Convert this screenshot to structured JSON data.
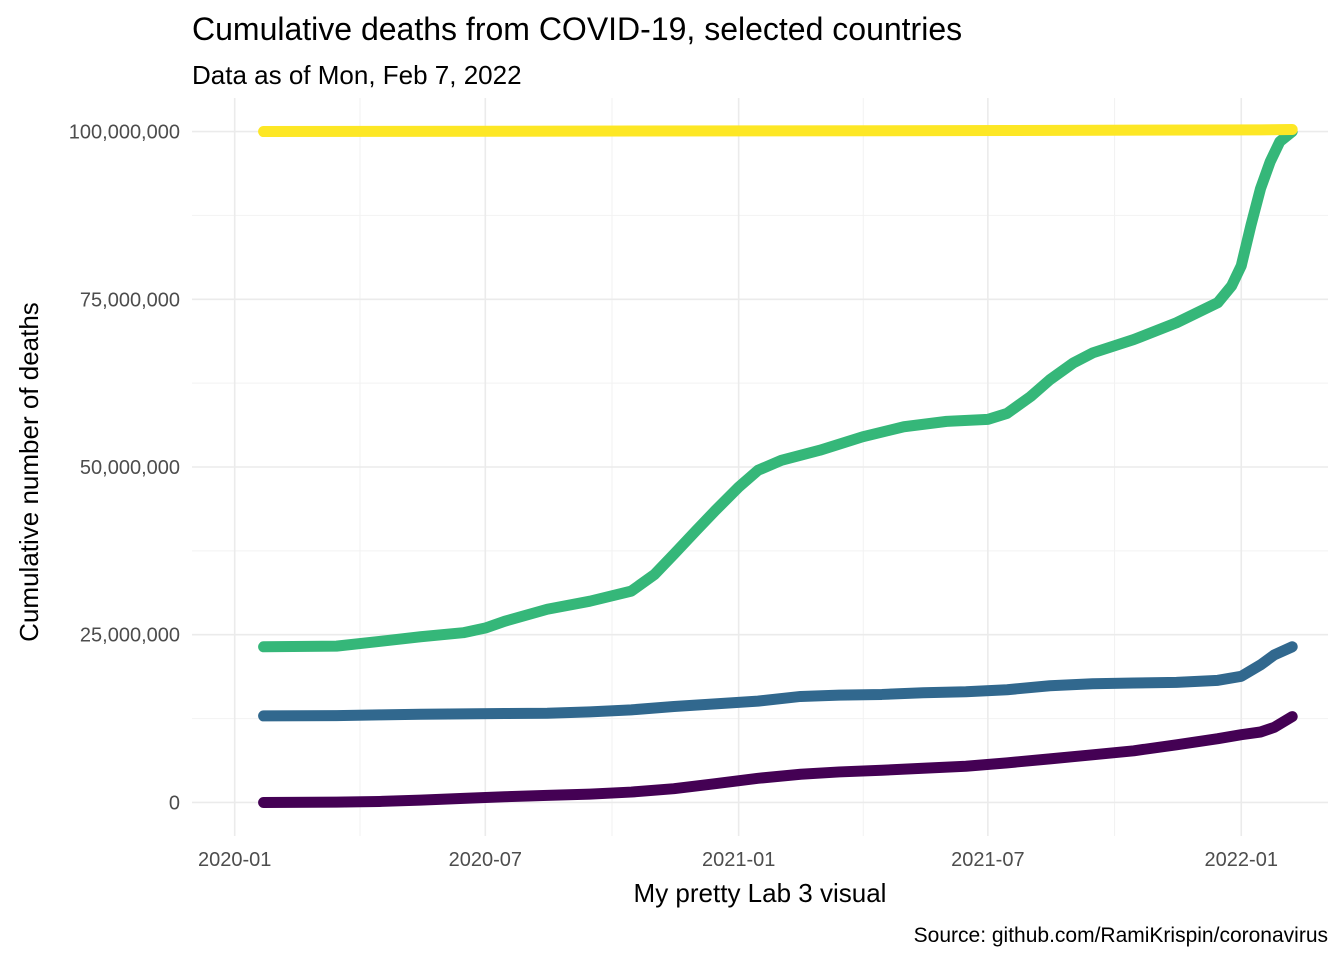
{
  "chart_data": {
    "type": "line",
    "title": "Cumulative deaths from COVID-19, selected countries",
    "subtitle": "Data as of Mon, Feb 7, 2022",
    "xlabel": "My pretty Lab 3 visual",
    "ylabel": "Cumulative number of deaths",
    "caption": "Source: github.com/RamiKrispin/coronavirus",
    "grid": true,
    "legend": "none",
    "x_tick_labels": [
      "2020-01",
      "2020-07",
      "2021-01",
      "2021-07",
      "2022-01"
    ],
    "y_tick_labels": [
      "0",
      "25,000,000",
      "50,000,000",
      "75,000,000",
      "100,000,000"
    ],
    "y_ticks": [
      0,
      25000000,
      50000000,
      75000000,
      100000000
    ],
    "x_ticks": [
      "2020-01-01",
      "2020-07-01",
      "2021-01-01",
      "2021-07-01",
      "2022-01-01"
    ],
    "xlim": [
      "2019-12-01",
      "2022-03-05"
    ],
    "ylim": [
      -5000000,
      105000000
    ],
    "series": [
      {
        "color": "#440154",
        "points": [
          [
            "2020-01-22",
            0
          ],
          [
            "2020-03-15",
            50000
          ],
          [
            "2020-04-15",
            150000
          ],
          [
            "2020-05-15",
            350000
          ],
          [
            "2020-06-15",
            600000
          ],
          [
            "2020-07-15",
            850000
          ],
          [
            "2020-08-15",
            1050000
          ],
          [
            "2020-09-15",
            1250000
          ],
          [
            "2020-10-15",
            1550000
          ],
          [
            "2020-11-15",
            2050000
          ],
          [
            "2020-12-15",
            2800000
          ],
          [
            "2021-01-15",
            3600000
          ],
          [
            "2021-02-15",
            4200000
          ],
          [
            "2021-03-15",
            4550000
          ],
          [
            "2021-04-15",
            4800000
          ],
          [
            "2021-05-15",
            5100000
          ],
          [
            "2021-06-15",
            5400000
          ],
          [
            "2021-07-15",
            5900000
          ],
          [
            "2021-08-15",
            6500000
          ],
          [
            "2021-09-15",
            7100000
          ],
          [
            "2021-10-15",
            7700000
          ],
          [
            "2021-11-15",
            8600000
          ],
          [
            "2021-12-15",
            9500000
          ],
          [
            "2022-01-01",
            10100000
          ],
          [
            "2022-01-15",
            10500000
          ],
          [
            "2022-01-25",
            11200000
          ],
          [
            "2022-02-07",
            12800000
          ]
        ]
      },
      {
        "color": "#31688e",
        "points": [
          [
            "2020-01-22",
            12900000
          ],
          [
            "2020-03-15",
            12950000
          ],
          [
            "2020-04-15",
            13050000
          ],
          [
            "2020-05-15",
            13150000
          ],
          [
            "2020-06-15",
            13200000
          ],
          [
            "2020-07-15",
            13250000
          ],
          [
            "2020-08-15",
            13300000
          ],
          [
            "2020-09-15",
            13500000
          ],
          [
            "2020-10-15",
            13800000
          ],
          [
            "2020-11-15",
            14300000
          ],
          [
            "2020-12-15",
            14700000
          ],
          [
            "2021-01-15",
            15100000
          ],
          [
            "2021-02-15",
            15800000
          ],
          [
            "2021-03-15",
            16000000
          ],
          [
            "2021-04-15",
            16100000
          ],
          [
            "2021-05-15",
            16350000
          ],
          [
            "2021-06-15",
            16500000
          ],
          [
            "2021-07-15",
            16800000
          ],
          [
            "2021-08-15",
            17400000
          ],
          [
            "2021-09-15",
            17700000
          ],
          [
            "2021-10-15",
            17800000
          ],
          [
            "2021-11-15",
            17900000
          ],
          [
            "2021-12-15",
            18200000
          ],
          [
            "2022-01-01",
            18800000
          ],
          [
            "2022-01-15",
            20500000
          ],
          [
            "2022-01-25",
            22000000
          ],
          [
            "2022-02-07",
            23200000
          ]
        ]
      },
      {
        "color": "#35b779",
        "points": [
          [
            "2020-01-22",
            23200000
          ],
          [
            "2020-03-15",
            23300000
          ],
          [
            "2020-04-15",
            24000000
          ],
          [
            "2020-05-15",
            24700000
          ],
          [
            "2020-06-15",
            25300000
          ],
          [
            "2020-07-01",
            26000000
          ],
          [
            "2020-07-15",
            27000000
          ],
          [
            "2020-08-15",
            28800000
          ],
          [
            "2020-09-15",
            30000000
          ],
          [
            "2020-10-15",
            31500000
          ],
          [
            "2020-11-01",
            34000000
          ],
          [
            "2020-11-15",
            37000000
          ],
          [
            "2020-12-01",
            40500000
          ],
          [
            "2020-12-15",
            43500000
          ],
          [
            "2021-01-01",
            47000000
          ],
          [
            "2021-01-15",
            49500000
          ],
          [
            "2021-02-01",
            51000000
          ],
          [
            "2021-03-01",
            52500000
          ],
          [
            "2021-04-01",
            54500000
          ],
          [
            "2021-05-01",
            56000000
          ],
          [
            "2021-06-01",
            56800000
          ],
          [
            "2021-07-01",
            57100000
          ],
          [
            "2021-07-15",
            58000000
          ],
          [
            "2021-08-01",
            60500000
          ],
          [
            "2021-08-15",
            63000000
          ],
          [
            "2021-09-01",
            65500000
          ],
          [
            "2021-09-15",
            67000000
          ],
          [
            "2021-10-15",
            69000000
          ],
          [
            "2021-11-15",
            71500000
          ],
          [
            "2021-12-15",
            74500000
          ],
          [
            "2021-12-25",
            77000000
          ],
          [
            "2022-01-01",
            80000000
          ],
          [
            "2022-01-08",
            86000000
          ],
          [
            "2022-01-15",
            91500000
          ],
          [
            "2022-01-22",
            95500000
          ],
          [
            "2022-01-29",
            98500000
          ],
          [
            "2022-02-07",
            100000000
          ]
        ]
      },
      {
        "color": "#fde725",
        "points": [
          [
            "2020-01-22",
            100000000
          ],
          [
            "2020-07-15",
            100050000
          ],
          [
            "2021-01-15",
            100100000
          ],
          [
            "2021-07-15",
            100150000
          ],
          [
            "2022-01-15",
            100250000
          ],
          [
            "2022-02-07",
            100300000
          ]
        ]
      }
    ]
  }
}
